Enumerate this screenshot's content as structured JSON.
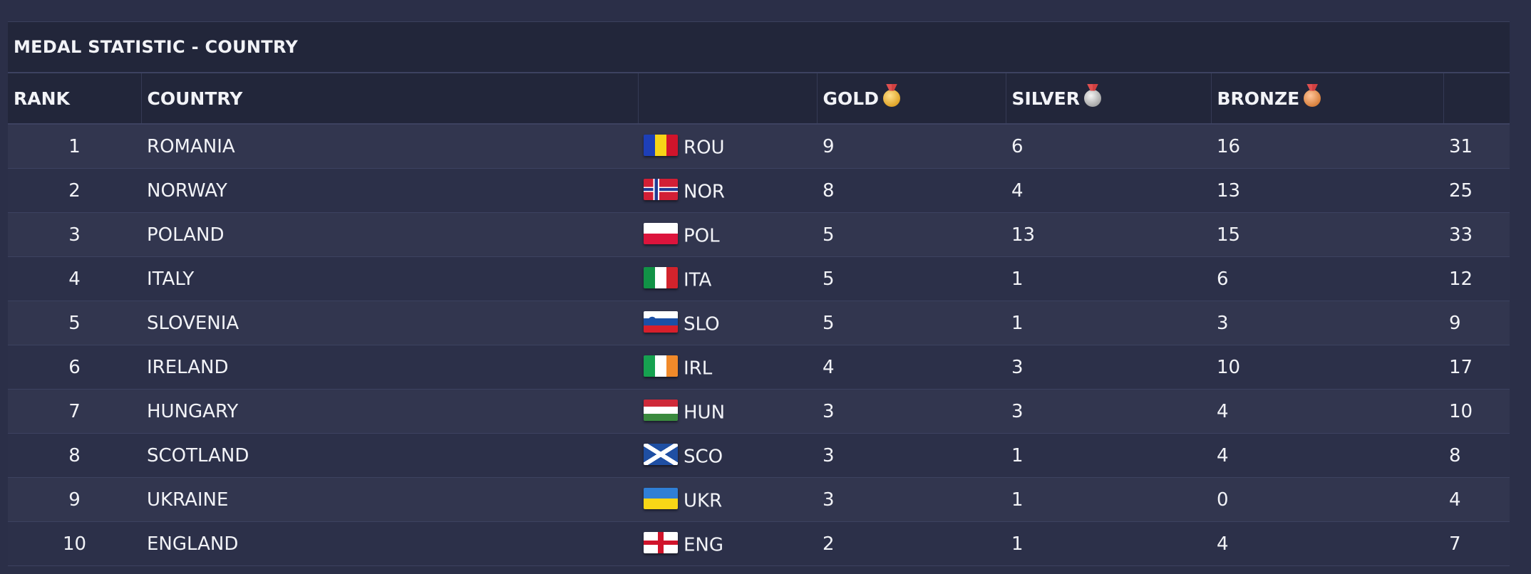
{
  "title": "MEDAL STATISTIC - COUNTRY",
  "headers": {
    "rank": "RANK",
    "country": "COUNTRY",
    "flag": "",
    "gold": "GOLD",
    "silver": "SILVER",
    "bronze": "BRONZE",
    "total": ""
  },
  "rows": [
    {
      "rank": "1",
      "country": "ROMANIA",
      "code": "ROU",
      "flag_icon": "romania-flag-icon",
      "gold": "9",
      "silver": "6",
      "bronze": "16",
      "total": "31"
    },
    {
      "rank": "2",
      "country": "NORWAY",
      "code": "NOR",
      "flag_icon": "norway-flag-icon",
      "gold": "8",
      "silver": "4",
      "bronze": "13",
      "total": "25"
    },
    {
      "rank": "3",
      "country": "POLAND",
      "code": "POL",
      "flag_icon": "poland-flag-icon",
      "gold": "5",
      "silver": "13",
      "bronze": "15",
      "total": "33"
    },
    {
      "rank": "4",
      "country": "ITALY",
      "code": "ITA",
      "flag_icon": "italy-flag-icon",
      "gold": "5",
      "silver": "1",
      "bronze": "6",
      "total": "12"
    },
    {
      "rank": "5",
      "country": "SLOVENIA",
      "code": "SLO",
      "flag_icon": "slovenia-flag-icon",
      "gold": "5",
      "silver": "1",
      "bronze": "3",
      "total": "9"
    },
    {
      "rank": "6",
      "country": "IRELAND",
      "code": "IRL",
      "flag_icon": "ireland-flag-icon",
      "gold": "4",
      "silver": "3",
      "bronze": "10",
      "total": "17"
    },
    {
      "rank": "7",
      "country": "HUNGARY",
      "code": "HUN",
      "flag_icon": "hungary-flag-icon",
      "gold": "3",
      "silver": "3",
      "bronze": "4",
      "total": "10"
    },
    {
      "rank": "8",
      "country": "SCOTLAND",
      "code": "SCO",
      "flag_icon": "scotland-flag-icon",
      "gold": "3",
      "silver": "1",
      "bronze": "4",
      "total": "8"
    },
    {
      "rank": "9",
      "country": "UKRAINE",
      "code": "UKR",
      "flag_icon": "ukraine-flag-icon",
      "gold": "3",
      "silver": "1",
      "bronze": "0",
      "total": "4"
    },
    {
      "rank": "10",
      "country": "ENGLAND",
      "code": "ENG",
      "flag_icon": "england-flag-icon",
      "gold": "2",
      "silver": "1",
      "bronze": "4",
      "total": "7"
    }
  ],
  "colors": {
    "background": "#2b2f48",
    "header_bg": "#22263a",
    "row_odd": "#32364f",
    "row_even": "#2c3049",
    "text": "#f2f3f7"
  }
}
